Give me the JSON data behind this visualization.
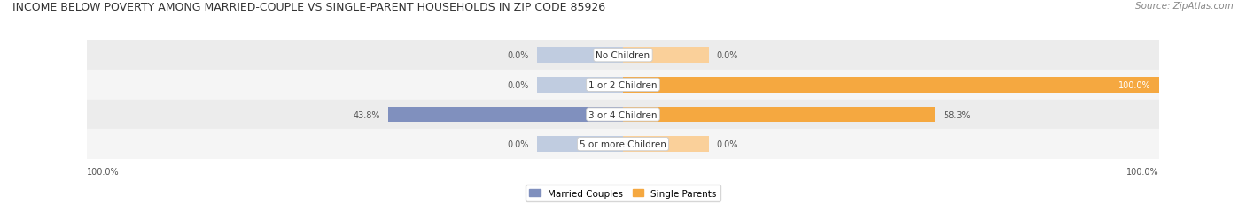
{
  "title": "INCOME BELOW POVERTY AMONG MARRIED-COUPLE VS SINGLE-PARENT HOUSEHOLDS IN ZIP CODE 85926",
  "source": "Source: ZipAtlas.com",
  "categories": [
    "No Children",
    "1 or 2 Children",
    "3 or 4 Children",
    "5 or more Children"
  ],
  "married_values": [
    0.0,
    0.0,
    43.8,
    0.0
  ],
  "single_values": [
    0.0,
    100.0,
    58.3,
    0.0
  ],
  "married_color": "#8090be",
  "married_color_light": "#c0cce0",
  "single_color": "#f5a840",
  "single_color_light": "#fad09a",
  "row_colors": [
    "#ececec",
    "#f5f5f5",
    "#ececec",
    "#f5f5f5"
  ],
  "title_color": "#333333",
  "source_color": "#888888",
  "label_color": "#333333",
  "value_color": "#555555",
  "value_color_on_bar": "#ffffff",
  "xlim": 100,
  "title_fontsize": 9.0,
  "label_fontsize": 7.5,
  "value_fontsize": 7.0,
  "source_fontsize": 7.5,
  "legend_fontsize": 7.5,
  "bar_height": 0.52,
  "light_bar_width": 16
}
